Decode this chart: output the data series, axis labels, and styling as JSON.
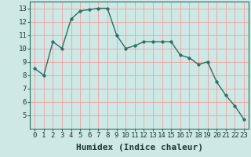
{
  "x": [
    0,
    1,
    2,
    3,
    4,
    5,
    6,
    7,
    8,
    9,
    10,
    11,
    12,
    13,
    14,
    15,
    16,
    17,
    18,
    19,
    20,
    21,
    22,
    23
  ],
  "y": [
    8.5,
    8.0,
    10.5,
    10.0,
    12.2,
    12.8,
    12.9,
    13.0,
    13.0,
    11.0,
    10.0,
    10.2,
    10.5,
    10.5,
    10.5,
    10.5,
    9.5,
    9.3,
    8.8,
    9.0,
    7.5,
    6.5,
    5.7,
    4.7
  ],
  "line_color": "#2d6e63",
  "marker_color": "#2d6e63",
  "bg_color": "#cde8e5",
  "grid_color_major": "#f0a0a0",
  "grid_color_minor": "#e8c8c8",
  "xlabel": "Humidex (Indice chaleur)",
  "xlabel_fontsize": 8,
  "ylim": [
    4,
    13.5
  ],
  "xlim": [
    -0.5,
    23.5
  ],
  "yticks": [
    5,
    6,
    7,
    8,
    9,
    10,
    11,
    12,
    13
  ],
  "xticks": [
    0,
    1,
    2,
    3,
    4,
    5,
    6,
    7,
    8,
    9,
    10,
    11,
    12,
    13,
    14,
    15,
    16,
    17,
    18,
    19,
    20,
    21,
    22,
    23
  ],
  "tick_fontsize": 6.5,
  "line_width": 1.0,
  "marker_size": 2.5
}
